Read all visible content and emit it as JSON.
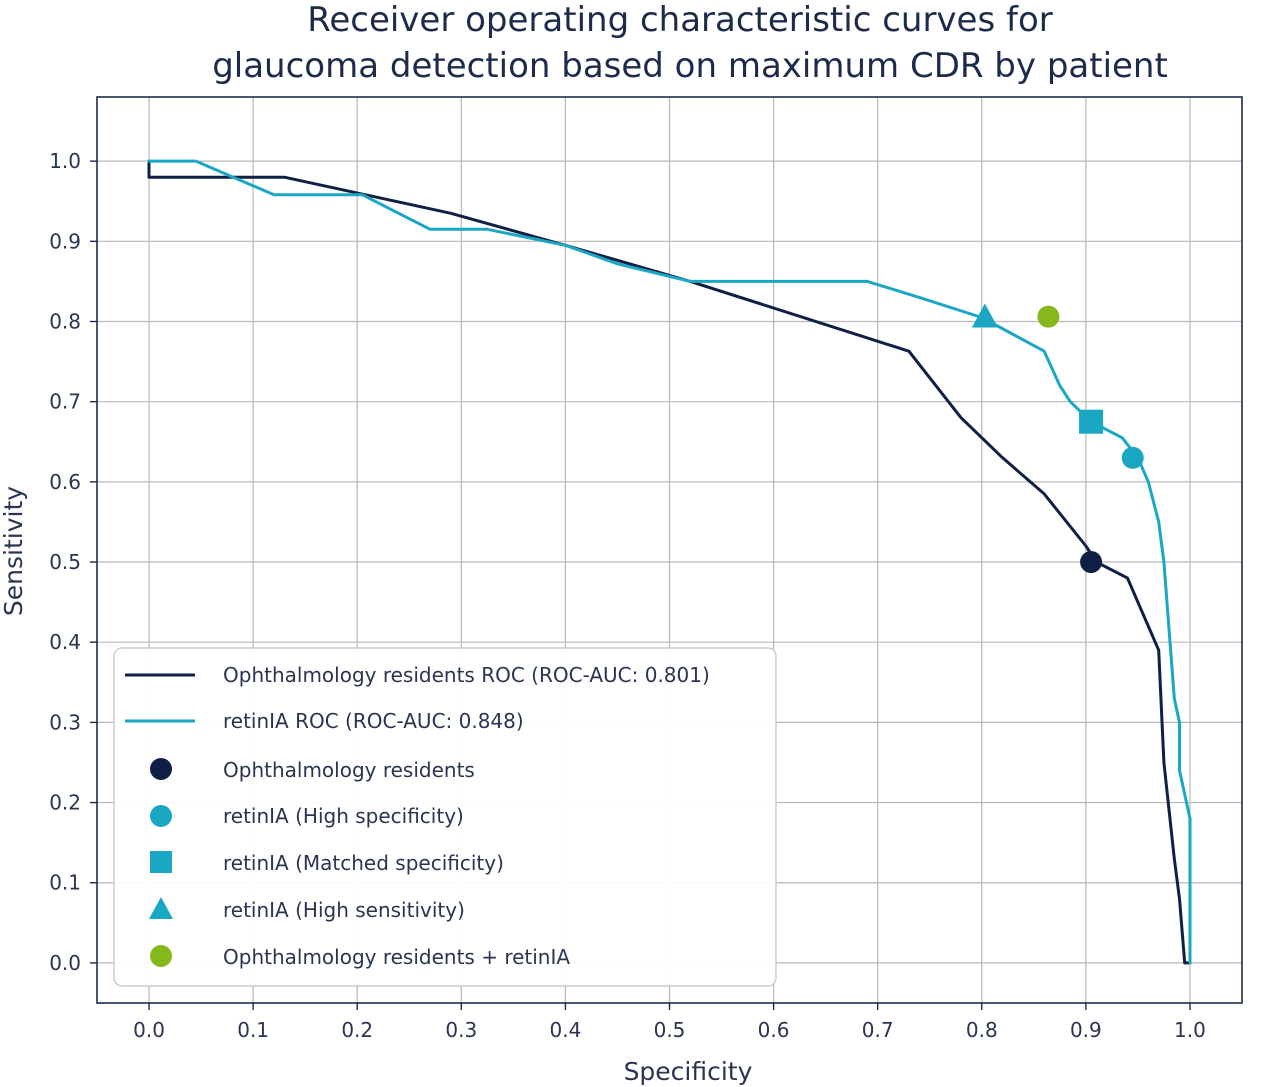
{
  "chart_data": {
    "type": "line",
    "title_lines": [
      "Receiver operating characteristic curves for",
      "glaucoma detection based on maximum CDR by patient"
    ],
    "xlabel": "Specificity",
    "ylabel": "Sensitivity",
    "xlim": [
      -0.05,
      1.05
    ],
    "ylim": [
      -0.05,
      1.08
    ],
    "x_ticks": [
      0.0,
      0.1,
      0.2,
      0.3,
      0.4,
      0.5,
      0.6,
      0.7,
      0.8,
      0.9,
      1.0
    ],
    "x_tick_labels": [
      "0.0",
      "0.1",
      "0.2",
      "0.3",
      "0.4",
      "0.5",
      "0.6",
      "0.7",
      "0.8",
      "0.9",
      "1.0"
    ],
    "y_ticks": [
      0.0,
      0.1,
      0.2,
      0.3,
      0.4,
      0.5,
      0.6,
      0.7,
      0.8,
      0.9,
      1.0
    ],
    "y_tick_labels": [
      "0.0",
      "0.1",
      "0.2",
      "0.3",
      "0.4",
      "0.5",
      "0.6",
      "0.7",
      "0.8",
      "0.9",
      "1.0"
    ],
    "grid": true,
    "legend_position": "lower-left",
    "series": [
      {
        "name": "Ophthalmology residents ROC (ROC-AUC: 0.801)",
        "kind": "line",
        "color": "#0f1f45",
        "x": [
          0.0,
          0.0,
          0.13,
          0.29,
          0.4,
          0.52,
          0.73,
          0.78,
          0.82,
          0.86,
          0.9,
          0.91,
          0.94,
          0.97,
          0.975,
          0.985,
          0.99,
          0.995,
          1.0
        ],
        "y": [
          1.0,
          0.98,
          0.98,
          0.935,
          0.895,
          0.85,
          0.763,
          0.68,
          0.63,
          0.585,
          0.52,
          0.5,
          0.48,
          0.39,
          0.25,
          0.13,
          0.08,
          0.0,
          0.0
        ]
      },
      {
        "name": "retinIA ROC (ROC-AUC: 0.848)",
        "kind": "line",
        "color": "#1aa7c4",
        "x": [
          0.0,
          0.045,
          0.12,
          0.205,
          0.27,
          0.325,
          0.4,
          0.45,
          0.52,
          0.69,
          0.74,
          0.8,
          0.86,
          0.875,
          0.885,
          0.905,
          0.935,
          0.95,
          0.96,
          0.97,
          0.975,
          0.985,
          0.99,
          0.99,
          1.0,
          1.0
        ],
        "y": [
          1.0,
          1.0,
          0.958,
          0.958,
          0.915,
          0.915,
          0.895,
          0.872,
          0.85,
          0.85,
          0.83,
          0.805,
          0.763,
          0.72,
          0.7,
          0.675,
          0.655,
          0.63,
          0.6,
          0.55,
          0.5,
          0.33,
          0.3,
          0.24,
          0.18,
          0.0
        ]
      },
      {
        "name": "Ophthalmology residents",
        "kind": "marker",
        "marker": "circle",
        "color": "#0f1f45",
        "x": [
          0.905
        ],
        "y": [
          0.5
        ]
      },
      {
        "name": "retinIA (High specificity)",
        "kind": "marker",
        "marker": "circle",
        "color": "#1aa7c4",
        "x": [
          0.945
        ],
        "y": [
          0.63
        ]
      },
      {
        "name": "retinIA (Matched specificity)",
        "kind": "marker",
        "marker": "square",
        "color": "#1aa7c4",
        "x": [
          0.905
        ],
        "y": [
          0.675
        ]
      },
      {
        "name": "retinIA (High sensitivity)",
        "kind": "marker",
        "marker": "triangle",
        "color": "#1aa7c4",
        "x": [
          0.803
        ],
        "y": [
          0.805
        ]
      },
      {
        "name": "Ophthalmology residents + retinIA",
        "kind": "marker",
        "marker": "circle",
        "color": "#86b81c",
        "x": [
          0.864
        ],
        "y": [
          0.806
        ]
      }
    ]
  }
}
